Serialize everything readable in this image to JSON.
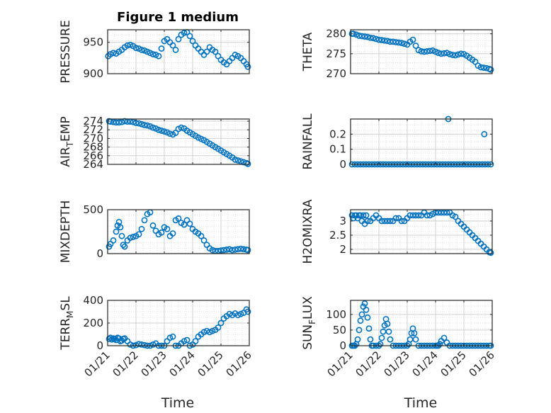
{
  "figure": {
    "title": "Figure 1 medium",
    "x_tick_labels": [
      "01/21",
      "01/22",
      "01/23",
      "01/24",
      "01/25",
      "01/26"
    ],
    "xlabel": "Time"
  },
  "chart_data": [
    {
      "type": "scatter",
      "title": "Figure 1 medium",
      "ylabel": "PRESSURE",
      "ylim": [
        900,
        970
      ],
      "yticks": [
        900,
        950
      ],
      "xlim": [
        0,
        5
      ],
      "grid": true,
      "marker": "open-circle",
      "color": "#0072BD",
      "x": [
        0.02,
        0.1,
        0.2,
        0.3,
        0.4,
        0.5,
        0.6,
        0.7,
        0.8,
        0.9,
        1.0,
        1.1,
        1.2,
        1.3,
        1.4,
        1.5,
        1.6,
        1.7,
        1.8,
        1.9,
        2.0,
        2.1,
        2.2,
        2.3,
        2.4,
        2.5,
        2.6,
        2.7,
        2.8,
        2.9,
        3.0,
        3.1,
        3.2,
        3.3,
        3.4,
        3.5,
        3.6,
        3.7,
        3.8,
        3.9,
        4.0,
        4.1,
        4.2,
        4.3,
        4.4,
        4.5,
        4.6,
        4.7,
        4.8,
        4.9,
        4.95
      ],
      "y": [
        928,
        931,
        933,
        932,
        935,
        938,
        942,
        945,
        946,
        944,
        941,
        940,
        938,
        937,
        935,
        933,
        931,
        930,
        928,
        940,
        952,
        955,
        950,
        945,
        938,
        955,
        962,
        965,
        966,
        960,
        952,
        945,
        940,
        935,
        930,
        935,
        942,
        938,
        935,
        928,
        922,
        918,
        915,
        920,
        925,
        930,
        928,
        925,
        920,
        915,
        911
      ]
    },
    {
      "type": "scatter",
      "ylabel": "THETA",
      "ylim": [
        270,
        281
      ],
      "yticks": [
        270,
        275,
        280
      ],
      "xlim": [
        0,
        5
      ],
      "grid": true,
      "marker": "open-circle",
      "color": "#0072BD",
      "x": [
        0.05,
        0.1,
        0.2,
        0.3,
        0.4,
        0.5,
        0.6,
        0.7,
        0.8,
        0.9,
        1.0,
        1.1,
        1.2,
        1.3,
        1.4,
        1.5,
        1.6,
        1.7,
        1.8,
        1.9,
        2.0,
        2.1,
        2.2,
        2.3,
        2.4,
        2.5,
        2.6,
        2.7,
        2.8,
        2.9,
        3.0,
        3.1,
        3.2,
        3.3,
        3.4,
        3.5,
        3.6,
        3.7,
        3.8,
        3.9,
        4.0,
        4.1,
        4.2,
        4.3,
        4.4,
        4.5,
        4.6,
        4.7,
        4.8,
        4.9,
        4.95
      ],
      "y": [
        280,
        280,
        279.8,
        279.5,
        279.4,
        279.3,
        279.2,
        279,
        278.9,
        278.7,
        278.5,
        278.4,
        278.3,
        278.2,
        278,
        278,
        277.9,
        277.8,
        277.7,
        277.5,
        277.3,
        278,
        278.5,
        277,
        275.9,
        275.6,
        275.5,
        275.6,
        275.7,
        275.8,
        275.5,
        275.2,
        275,
        275.1,
        275.2,
        274.9,
        274.7,
        274.6,
        274.8,
        275,
        274.9,
        274.5,
        274,
        273.5,
        273,
        272,
        271.6,
        271.5,
        271.4,
        271.2,
        271
      ]
    },
    {
      "type": "scatter",
      "ylabel": "AIR_TEMP",
      "ylim": [
        264,
        274.5
      ],
      "yticks": [
        264,
        266,
        268,
        270,
        272,
        274
      ],
      "xlim": [
        0,
        5
      ],
      "grid": true,
      "marker": "open-circle",
      "color": "#0072BD",
      "x": [
        0.05,
        0.1,
        0.2,
        0.3,
        0.4,
        0.5,
        0.6,
        0.7,
        0.8,
        0.9,
        1.0,
        1.1,
        1.2,
        1.3,
        1.4,
        1.5,
        1.6,
        1.7,
        1.8,
        1.9,
        2.0,
        2.1,
        2.2,
        2.3,
        2.4,
        2.5,
        2.6,
        2.7,
        2.8,
        2.9,
        3.0,
        3.1,
        3.2,
        3.3,
        3.4,
        3.5,
        3.6,
        3.7,
        3.8,
        3.9,
        4.0,
        4.1,
        4.2,
        4.3,
        4.4,
        4.5,
        4.6,
        4.7,
        4.8,
        4.9,
        4.95
      ],
      "y": [
        274,
        273.9,
        273.8,
        273.7,
        273.7,
        273.8,
        274,
        273.9,
        273.9,
        273.8,
        273.6,
        273.5,
        273.3,
        273.1,
        273,
        272.8,
        272.5,
        272.3,
        272,
        271.8,
        271.6,
        271.4,
        271.1,
        270.9,
        271.3,
        272.2,
        272.5,
        272.3,
        271.8,
        271.4,
        271,
        270.6,
        270.2,
        269.9,
        269.6,
        269.2,
        268.8,
        268.4,
        268,
        267.6,
        267.2,
        266.8,
        266.4,
        266,
        265.6,
        265.1,
        264.9,
        264.7,
        264.5,
        264.3,
        264.1
      ]
    },
    {
      "type": "scatter",
      "ylabel": "RAINFALL",
      "ylim": [
        0,
        0.3
      ],
      "yticks": [
        0,
        0.1,
        0.2
      ],
      "xlim": [
        0,
        5
      ],
      "grid": true,
      "marker": "open-circle",
      "color": "#0072BD",
      "x": [
        0.05,
        0.15,
        0.25,
        0.35,
        0.45,
        0.55,
        0.65,
        0.75,
        0.85,
        0.95,
        1.05,
        1.15,
        1.25,
        1.35,
        1.45,
        1.55,
        1.65,
        1.75,
        1.85,
        1.95,
        2.05,
        2.15,
        2.25,
        2.35,
        2.45,
        2.55,
        2.65,
        2.75,
        2.85,
        2.95,
        3.05,
        3.15,
        3.25,
        3.35,
        3.45,
        3.55,
        3.65,
        3.75,
        3.85,
        3.95,
        4.05,
        4.15,
        4.25,
        4.35,
        4.45,
        4.55,
        4.65,
        4.75,
        4.85,
        4.95,
        3.45,
        4.72
      ],
      "y": [
        0,
        0,
        0,
        0,
        0,
        0,
        0,
        0,
        0,
        0,
        0,
        0,
        0,
        0,
        0,
        0,
        0,
        0,
        0,
        0,
        0,
        0,
        0,
        0,
        0,
        0,
        0,
        0,
        0,
        0,
        0,
        0,
        0,
        0,
        0,
        0,
        0,
        0,
        0,
        0,
        0,
        0,
        0,
        0,
        0,
        0,
        0,
        0,
        0,
        0,
        0.3,
        0.2
      ]
    },
    {
      "type": "scatter",
      "ylabel": "MIXDEPTH",
      "ylim": [
        0,
        500
      ],
      "yticks": [
        0,
        500
      ],
      "xlim": [
        0,
        5
      ],
      "grid": true,
      "marker": "open-circle",
      "color": "#0072BD",
      "x": [
        0.05,
        0.1,
        0.2,
        0.3,
        0.35,
        0.4,
        0.45,
        0.5,
        0.55,
        0.6,
        0.7,
        0.8,
        0.9,
        1.0,
        1.1,
        1.2,
        1.3,
        1.4,
        1.5,
        1.6,
        1.7,
        1.8,
        1.9,
        2.0,
        2.1,
        2.2,
        2.3,
        2.4,
        2.5,
        2.6,
        2.7,
        2.8,
        2.9,
        3.0,
        3.1,
        3.2,
        3.3,
        3.4,
        3.5,
        3.6,
        3.7,
        3.8,
        3.9,
        4.0,
        4.1,
        4.2,
        4.3,
        4.4,
        4.5,
        4.6,
        4.7,
        4.8,
        4.9,
        4.95
      ],
      "y": [
        80,
        110,
        150,
        250,
        320,
        360,
        300,
        200,
        100,
        80,
        150,
        180,
        190,
        200,
        220,
        280,
        380,
        450,
        470,
        320,
        260,
        220,
        240,
        300,
        280,
        200,
        230,
        380,
        400,
        350,
        330,
        380,
        340,
        280,
        250,
        230,
        200,
        150,
        100,
        60,
        40,
        30,
        30,
        35,
        40,
        45,
        50,
        40,
        45,
        50,
        55,
        50,
        45,
        40
      ]
    },
    {
      "type": "scatter",
      "ylabel": "H2OMIXRA",
      "ylim": [
        1.85,
        3.4
      ],
      "yticks": [
        2,
        2.5,
        3
      ],
      "xlim": [
        0,
        5
      ],
      "grid": true,
      "marker": "open-circle",
      "color": "#0072BD",
      "x": [
        0.05,
        0.1,
        0.15,
        0.2,
        0.25,
        0.3,
        0.35,
        0.4,
        0.45,
        0.5,
        0.55,
        0.6,
        0.7,
        0.8,
        0.9,
        1.0,
        1.1,
        1.2,
        1.3,
        1.4,
        1.5,
        1.6,
        1.7,
        1.8,
        1.9,
        2.0,
        2.1,
        2.2,
        2.3,
        2.4,
        2.5,
        2.6,
        2.7,
        2.8,
        2.9,
        3.0,
        3.1,
        3.2,
        3.3,
        3.4,
        3.5,
        3.6,
        3.7,
        3.8,
        3.9,
        4.0,
        4.1,
        4.2,
        4.3,
        4.4,
        4.5,
        4.6,
        4.7,
        4.8,
        4.9,
        4.95
      ],
      "y": [
        3.2,
        3.1,
        3.2,
        3.2,
        3.1,
        3.2,
        3.2,
        3.0,
        3.2,
        2.9,
        3.2,
        3.0,
        3.0,
        3.1,
        3.2,
        3.1,
        3.0,
        3.0,
        3.0,
        3.0,
        3.0,
        3.1,
        3.1,
        3.0,
        3.0,
        3.1,
        3.2,
        3.2,
        3.2,
        3.2,
        3.2,
        3.3,
        3.2,
        3.2,
        3.25,
        3.3,
        3.3,
        3.3,
        3.3,
        3.3,
        3.3,
        3.2,
        3.15,
        3.0,
        2.9,
        2.8,
        2.7,
        2.6,
        2.5,
        2.4,
        2.3,
        2.2,
        2.1,
        2.0,
        1.9,
        1.88
      ]
    },
    {
      "type": "scatter",
      "ylabel": "TERR_MSL",
      "ylim": [
        0,
        400
      ],
      "yticks": [
        0,
        200,
        400
      ],
      "xlim": [
        0,
        5
      ],
      "grid": true,
      "marker": "open-circle",
      "color": "#0072BD",
      "x": [
        0.05,
        0.1,
        0.15,
        0.2,
        0.25,
        0.3,
        0.35,
        0.4,
        0.45,
        0.5,
        0.55,
        0.6,
        0.7,
        0.8,
        0.9,
        1.0,
        1.1,
        1.2,
        1.3,
        1.4,
        1.5,
        1.6,
        1.7,
        1.8,
        1.9,
        2.0,
        2.1,
        2.2,
        2.3,
        2.4,
        2.5,
        2.6,
        2.7,
        2.8,
        2.9,
        3.0,
        3.1,
        3.2,
        3.3,
        3.4,
        3.5,
        3.6,
        3.7,
        3.8,
        3.9,
        4.0,
        4.1,
        4.2,
        4.3,
        4.4,
        4.5,
        4.6,
        4.7,
        4.8,
        4.9,
        4.95
      ],
      "y": [
        60,
        70,
        55,
        65,
        60,
        50,
        70,
        65,
        40,
        45,
        60,
        65,
        40,
        10,
        0,
        5,
        15,
        10,
        5,
        0,
        0,
        10,
        20,
        0,
        0,
        0,
        40,
        70,
        80,
        0,
        0,
        20,
        40,
        50,
        0,
        10,
        40,
        80,
        100,
        120,
        130,
        120,
        130,
        140,
        160,
        200,
        240,
        260,
        280,
        270,
        285,
        270,
        280,
        290,
        320,
        300
      ]
    },
    {
      "type": "scatter",
      "ylabel": "SUN_FLUX",
      "ylim": [
        0,
        145
      ],
      "yticks": [
        0,
        50,
        100
      ],
      "xlim": [
        0,
        5
      ],
      "grid": true,
      "marker": "open-circle",
      "color": "#0072BD",
      "x": [
        0.05,
        0.1,
        0.15,
        0.2,
        0.25,
        0.3,
        0.35,
        0.4,
        0.45,
        0.5,
        0.55,
        0.6,
        0.65,
        0.7,
        0.75,
        0.8,
        0.9,
        1.0,
        1.05,
        1.1,
        1.15,
        1.2,
        1.25,
        1.3,
        1.35,
        1.4,
        1.5,
        1.6,
        1.7,
        1.8,
        1.9,
        2.0,
        2.05,
        2.1,
        2.15,
        2.2,
        2.25,
        2.3,
        2.4,
        2.5,
        2.6,
        2.7,
        2.8,
        2.9,
        3.0,
        3.05,
        3.1,
        3.15,
        3.2,
        3.3,
        3.4,
        3.5,
        3.6,
        3.7,
        3.8,
        3.9,
        4.0,
        4.1,
        4.2,
        4.3,
        4.4,
        4.5,
        4.6,
        4.7,
        4.8,
        4.9,
        4.95
      ],
      "y": [
        0,
        0,
        0,
        5,
        20,
        50,
        80,
        100,
        125,
        135,
        115,
        90,
        55,
        20,
        0,
        0,
        0,
        0,
        5,
        25,
        45,
        65,
        85,
        70,
        45,
        20,
        0,
        0,
        0,
        0,
        0,
        0,
        5,
        20,
        40,
        55,
        40,
        20,
        0,
        0,
        0,
        0,
        0,
        0,
        0,
        0,
        0,
        5,
        15,
        25,
        10,
        0,
        0,
        0,
        0,
        0,
        0,
        0,
        0,
        0,
        0,
        0,
        0,
        0,
        0,
        0,
        0
      ]
    }
  ]
}
